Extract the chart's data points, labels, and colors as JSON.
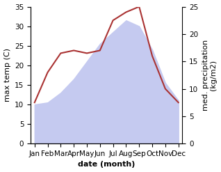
{
  "months": [
    "Jan",
    "Feb",
    "Mar",
    "Apr",
    "May",
    "Jun",
    "Jul",
    "Aug",
    "Sep",
    "Oct",
    "Nov",
    "Dec"
  ],
  "max_temp": [
    10.0,
    10.5,
    13.0,
    16.5,
    21.0,
    25.5,
    28.5,
    31.5,
    30.0,
    24.0,
    15.5,
    11.0
  ],
  "precipitation": [
    7.5,
    13.0,
    16.5,
    17.0,
    16.5,
    17.0,
    22.5,
    24.0,
    25.0,
    16.0,
    10.0,
    7.5
  ],
  "temp_color_fill": "#c5caf0",
  "precip_color": "#aa3333",
  "ylabel_left": "max temp (C)",
  "ylabel_right": "med. precipitation\n(kg/m2)",
  "xlabel": "date (month)",
  "ylim_left": [
    0,
    35
  ],
  "ylim_right": [
    0,
    25
  ],
  "yticks_left": [
    0,
    5,
    10,
    15,
    20,
    25,
    30,
    35
  ],
  "yticks_right": [
    0,
    5,
    10,
    15,
    20,
    25
  ],
  "background_color": "#ffffff",
  "label_fontsize": 8,
  "tick_fontsize": 7.5
}
